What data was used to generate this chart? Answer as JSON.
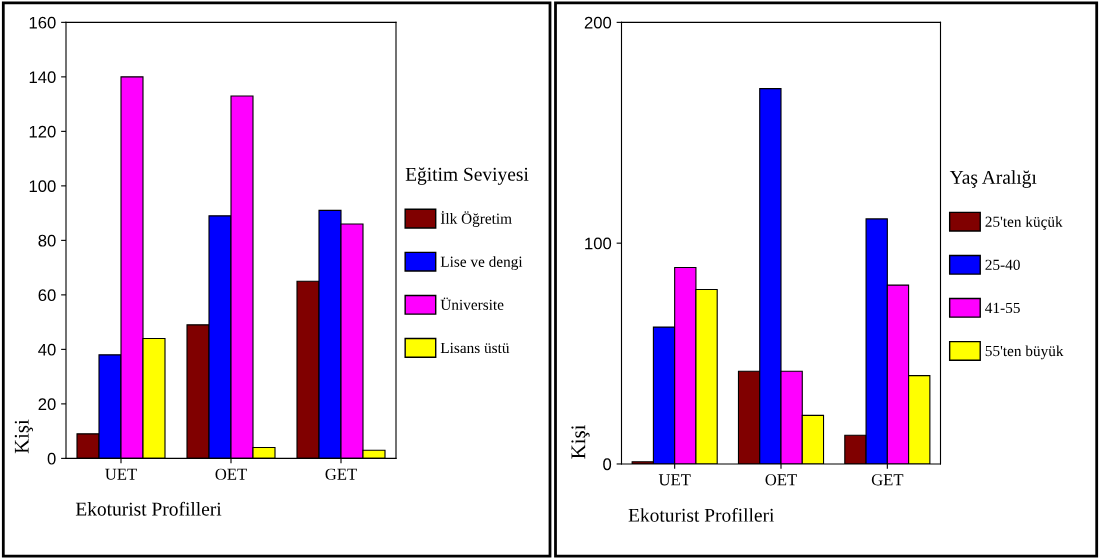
{
  "chart_data": [
    {
      "type": "bar",
      "xlabel": "Ekoturist Profilleri",
      "ylabel": "Kişi",
      "legend_title": "Eğitim Seviyesi",
      "legend": "right",
      "grid": false,
      "categories": [
        "UET",
        "OET",
        "GET"
      ],
      "ylim": [
        0,
        160
      ],
      "yticks": [
        0,
        20,
        40,
        60,
        80,
        100,
        120,
        140,
        160
      ],
      "series": [
        {
          "name": "İlk Öğretim",
          "color": "#800000",
          "values": [
            9,
            49,
            65
          ]
        },
        {
          "name": "Lise ve dengi",
          "color": "#0000ff",
          "values": [
            38,
            89,
            91
          ]
        },
        {
          "name": "Üniversite",
          "color": "#ff00ff",
          "values": [
            140,
            133,
            86
          ]
        },
        {
          "name": "Lisans üstü",
          "color": "#ffff00",
          "values": [
            44,
            4,
            3
          ]
        }
      ]
    },
    {
      "type": "bar",
      "xlabel": "Ekoturist Profilleri",
      "ylabel": "Kişi",
      "legend_title": "Yaş Aralığı",
      "legend": "right",
      "grid": false,
      "categories": [
        "UET",
        "OET",
        "GET"
      ],
      "ylim": [
        0,
        200
      ],
      "yticks": [
        0,
        100,
        200
      ],
      "series": [
        {
          "name": "25'ten küçük",
          "color": "#800000",
          "values": [
            1,
            42,
            13
          ]
        },
        {
          "name": "25-40",
          "color": "#0000ff",
          "values": [
            62,
            170,
            111
          ]
        },
        {
          "name": "41-55",
          "color": "#ff00ff",
          "values": [
            89,
            42,
            81
          ]
        },
        {
          "name": "55'ten büyük",
          "color": "#ffff00",
          "values": [
            79,
            22,
            40
          ]
        }
      ]
    }
  ]
}
